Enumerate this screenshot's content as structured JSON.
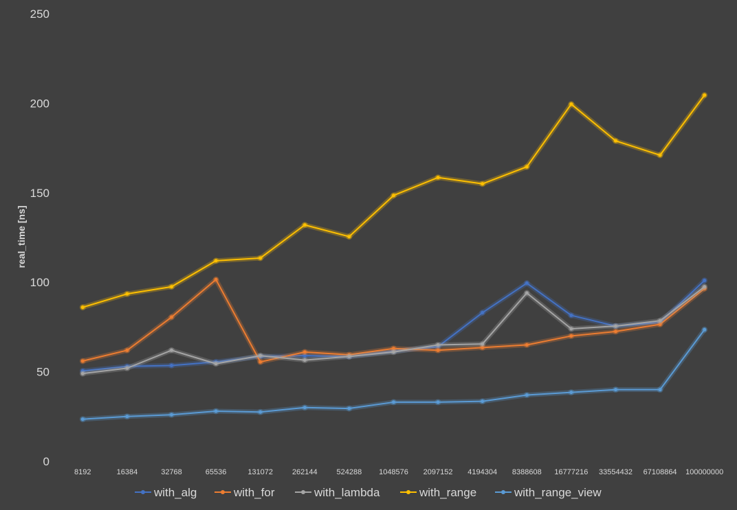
{
  "chart_data": {
    "type": "line",
    "title": "",
    "xlabel": "",
    "ylabel": "real_time [ns]",
    "ylim": [
      0,
      250
    ],
    "yticks": [
      "0",
      "50",
      "100",
      "150",
      "200",
      "250"
    ],
    "grid": false,
    "legend_position": "bottom",
    "categories": [
      "8192",
      "16384",
      "32768",
      "65536",
      "131072",
      "262144",
      "524288",
      "1048576",
      "2097152",
      "4194304",
      "8388608",
      "16777216",
      "33554432",
      "67108864",
      "100000000"
    ],
    "series": [
      {
        "name": "with_alg",
        "color": "#4472c4",
        "values": [
          50.5,
          53,
          53.5,
          55.5,
          58.5,
          59,
          58.5,
          61.5,
          64,
          83,
          99.5,
          81.5,
          75.5,
          77.5,
          101
        ]
      },
      {
        "name": "with_for",
        "color": "#ed7d31",
        "values": [
          56,
          62,
          80.5,
          101.5,
          55.5,
          61,
          59.5,
          63,
          62,
          63.5,
          65,
          70,
          72.5,
          76.5,
          96.5
        ]
      },
      {
        "name": "with_lambda",
        "color": "#a5a5a5",
        "values": [
          49,
          52,
          62,
          54.5,
          59,
          56.5,
          58.5,
          61,
          65,
          65.5,
          94,
          74,
          75.5,
          78.5,
          97.5
        ]
      },
      {
        "name": "with_range",
        "color": "#ffc000",
        "values": [
          86,
          93.5,
          97.5,
          112,
          113.5,
          132,
          125.5,
          148.5,
          158.5,
          155,
          164.5,
          199.5,
          179,
          171,
          204.5
        ]
      },
      {
        "name": "with_range_view",
        "color": "#5b9bd5",
        "values": [
          23.5,
          25,
          26,
          28,
          27.5,
          30,
          29.5,
          33,
          33,
          33.5,
          37,
          38.5,
          40,
          40,
          73.5
        ]
      }
    ]
  }
}
